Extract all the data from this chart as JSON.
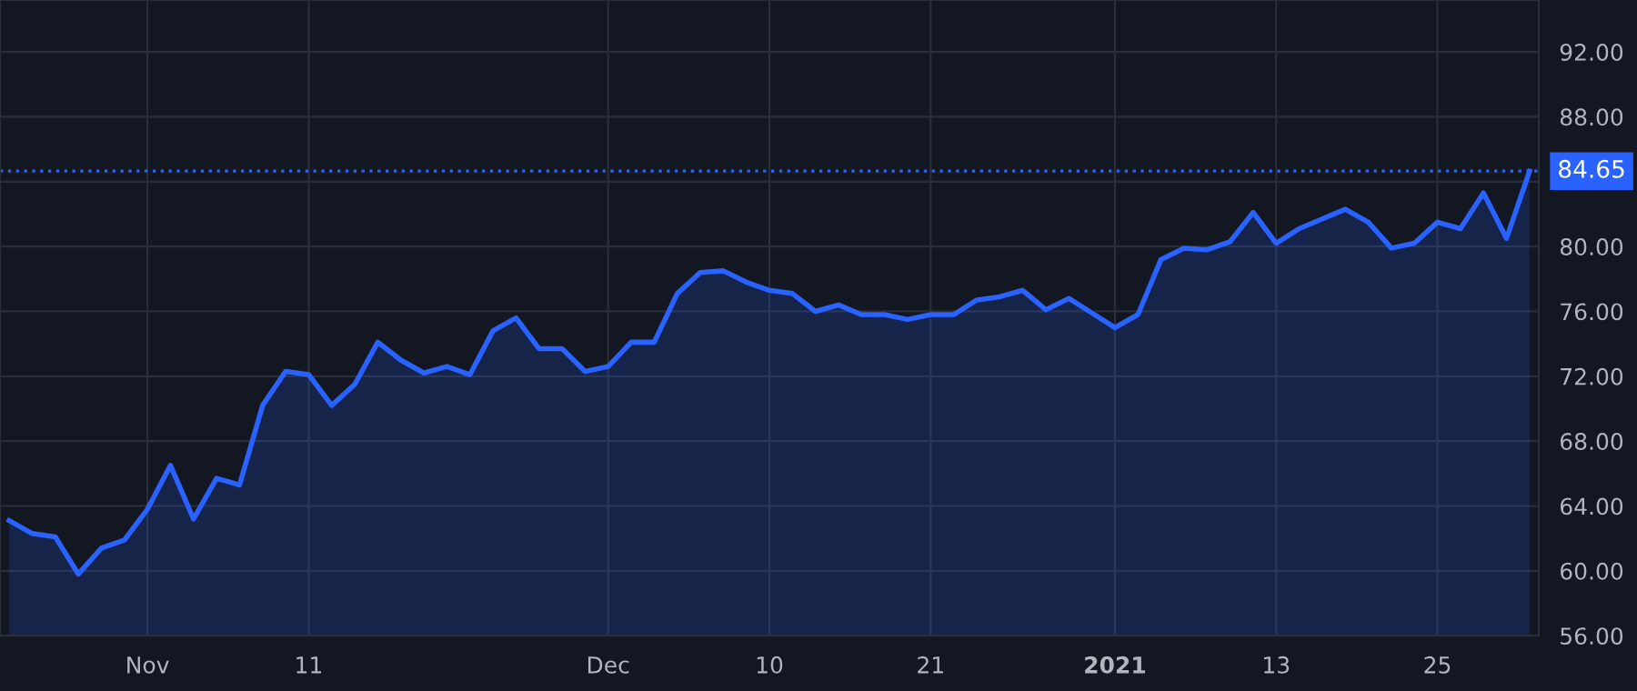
{
  "chart_data": {
    "type": "area",
    "categories": [
      null,
      null,
      null,
      null,
      null,
      null,
      "Nov",
      null,
      null,
      null,
      null,
      null,
      null,
      "11",
      null,
      null,
      null,
      null,
      null,
      null,
      null,
      null,
      null,
      null,
      null,
      null,
      "Dec",
      null,
      null,
      null,
      null,
      null,
      null,
      "10",
      null,
      null,
      null,
      null,
      null,
      null,
      "21",
      null,
      null,
      null,
      null,
      null,
      null,
      null,
      "2021",
      null,
      null,
      null,
      null,
      null,
      null,
      "13",
      null,
      null,
      null,
      null,
      null,
      null,
      "25",
      null,
      null,
      null,
      null
    ],
    "series": [
      {
        "color": "#2962ff",
        "values": [
          63.1,
          62.3,
          62.1,
          59.8,
          61.4,
          61.9,
          63.8,
          66.5,
          63.2,
          65.7,
          65.3,
          70.2,
          72.3,
          72.1,
          70.2,
          71.5,
          74.1,
          73.0,
          72.2,
          72.6,
          72.1,
          74.8,
          75.6,
          73.7,
          73.7,
          72.3,
          72.6,
          74.1,
          74.1,
          77.1,
          78.4,
          78.5,
          77.8,
          77.3,
          77.1,
          76.0,
          76.4,
          75.8,
          75.8,
          75.5,
          75.8,
          75.8,
          76.7,
          76.9,
          77.3,
          76.1,
          76.8,
          75.9,
          75.0,
          75.8,
          79.2,
          79.9,
          79.8,
          80.3,
          82.1,
          80.2,
          81.1,
          81.7,
          82.3,
          81.5,
          79.9,
          80.2,
          81.5,
          81.1,
          83.3,
          80.5,
          84.65
        ]
      }
    ],
    "ylim": [
      56,
      95.2
    ],
    "yticks": [
      {
        "value": 56,
        "label": "56.00"
      },
      {
        "value": 60,
        "label": "60.00"
      },
      {
        "value": 64,
        "label": "64.00"
      },
      {
        "value": 68,
        "label": "68.00"
      },
      {
        "value": 72,
        "label": "72.00"
      },
      {
        "value": 76,
        "label": "76.00"
      },
      {
        "value": 80,
        "label": "80.00"
      },
      {
        "value": 84,
        "label": null
      },
      {
        "value": 88,
        "label": "88.00"
      },
      {
        "value": 92,
        "label": "92.00"
      }
    ],
    "ref_lines": [
      {
        "axis": "y",
        "value": 84.65,
        "label": "84.65",
        "color": "#2962ff",
        "line_style": "dotted"
      }
    ],
    "grid": true,
    "legend": false
  }
}
